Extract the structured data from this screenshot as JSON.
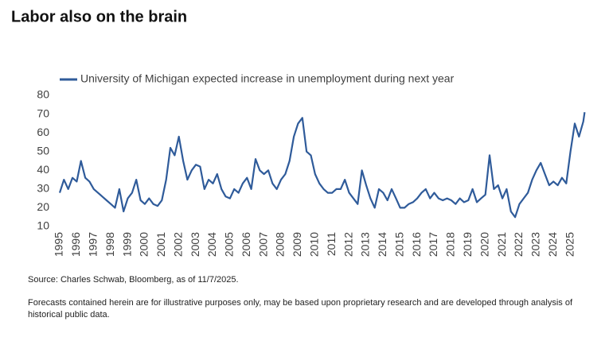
{
  "chart_data": {
    "type": "line",
    "title": "Labor also on the brain",
    "source": "Source: Charles Schwab, Bloomberg, as of 11/7/2025.",
    "footnote_lines": [
      "Forecasts contained herein are for illustrative purposes only, may be based upon proprietary research and are developed through analysis of",
      "historical public data."
    ],
    "x": [
      1995,
      1995.25,
      1995.5,
      1995.75,
      1996,
      1996.25,
      1996.5,
      1996.75,
      1997,
      1997.25,
      1997.5,
      1997.75,
      1998,
      1998.25,
      1998.5,
      1998.75,
      1999,
      1999.25,
      1999.5,
      1999.75,
      2000,
      2000.25,
      2000.5,
      2000.75,
      2001,
      2001.25,
      2001.5,
      2001.75,
      2002,
      2002.25,
      2002.5,
      2002.75,
      2003,
      2003.25,
      2003.5,
      2003.75,
      2004,
      2004.25,
      2004.5,
      2004.75,
      2005,
      2005.25,
      2005.5,
      2005.75,
      2006,
      2006.25,
      2006.5,
      2006.75,
      2007,
      2007.25,
      2007.5,
      2007.75,
      2008,
      2008.25,
      2008.5,
      2008.75,
      2009,
      2009.25,
      2009.5,
      2009.75,
      2010,
      2010.25,
      2010.5,
      2010.75,
      2011,
      2011.25,
      2011.5,
      2011.75,
      2012,
      2012.25,
      2012.5,
      2012.75,
      2013,
      2013.25,
      2013.5,
      2013.75,
      2014,
      2014.25,
      2014.5,
      2014.75,
      2015,
      2015.25,
      2015.5,
      2015.75,
      2016,
      2016.25,
      2016.5,
      2016.75,
      2017,
      2017.25,
      2017.5,
      2017.75,
      2018,
      2018.25,
      2018.5,
      2018.75,
      2019,
      2019.25,
      2019.5,
      2019.75,
      2020,
      2020.25,
      2020.5,
      2020.75,
      2021,
      2021.25,
      2021.5,
      2021.75,
      2022,
      2022.25,
      2022.5,
      2022.75,
      2023,
      2023.25,
      2023.5,
      2023.75,
      2024,
      2024.25,
      2024.5,
      2024.75,
      2025,
      2025.25,
      2025.5,
      2025.75,
      2025.83
    ],
    "series": [
      {
        "name": "University of Michigan expected increase in unemployment during next year",
        "color": "#2f5b9a",
        "values": [
          28,
          35,
          30,
          36,
          34,
          45,
          36,
          34,
          30,
          28,
          26,
          24,
          22,
          20,
          30,
          18,
          25,
          28,
          35,
          24,
          22,
          25,
          22,
          21,
          24,
          35,
          52,
          48,
          58,
          45,
          35,
          40,
          43,
          42,
          30,
          35,
          33,
          38,
          30,
          26,
          25,
          30,
          28,
          33,
          36,
          30,
          46,
          40,
          38,
          40,
          33,
          30,
          35,
          38,
          45,
          58,
          65,
          68,
          50,
          48,
          38,
          33,
          30,
          28,
          28,
          30,
          30,
          35,
          28,
          25,
          22,
          40,
          32,
          25,
          20,
          30,
          28,
          24,
          30,
          25,
          20,
          20,
          22,
          23,
          25,
          28,
          30,
          25,
          28,
          25,
          24,
          25,
          24,
          22,
          25,
          23,
          24,
          30,
          23,
          25,
          27,
          48,
          30,
          32,
          25,
          30,
          18,
          15,
          22,
          25,
          28,
          35,
          40,
          44,
          38,
          32,
          34,
          32,
          36,
          33,
          50,
          65,
          58,
          66,
          71
        ]
      }
    ],
    "xlim": [
      1995,
      2026
    ],
    "xticks": [
      1995,
      1996,
      1997,
      1998,
      1999,
      2000,
      2001,
      2002,
      2003,
      2004,
      2005,
      2006,
      2007,
      2008,
      2009,
      2010,
      2011,
      2012,
      2013,
      2014,
      2015,
      2016,
      2017,
      2018,
      2019,
      2020,
      2021,
      2022,
      2023,
      2024,
      2025
    ],
    "ylim": [
      10,
      80
    ],
    "yticks": [
      10,
      20,
      30,
      40,
      50,
      60,
      70,
      80
    ]
  }
}
